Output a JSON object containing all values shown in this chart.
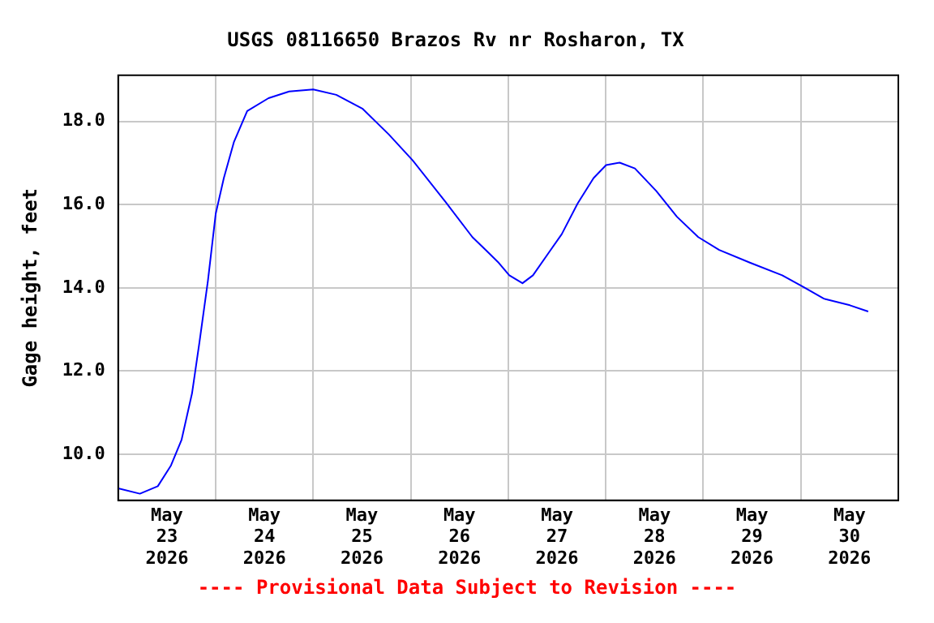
{
  "chart_data": {
    "type": "line",
    "title": "USGS 08116650 Brazos Rv nr Rosharon, TX",
    "ylabel": "Gage height, feet",
    "annotations": [
      "---- Provisional Data Subject to Revision ----"
    ],
    "x": [
      "2026-05-23T00:00",
      "2026-05-23T05:20",
      "2026-05-23T09:45",
      "2026-05-23T13:00",
      "2026-05-23T15:35",
      "2026-05-23T18:10",
      "2026-05-23T20:00",
      "2026-05-23T22:05",
      "2026-05-24T00:00",
      "2026-05-24T02:00",
      "2026-05-24T04:30",
      "2026-05-24T07:45",
      "2026-05-24T13:00",
      "2026-05-24T18:05",
      "2026-05-25T00:00",
      "2026-05-25T05:40",
      "2026-05-25T12:05",
      "2026-05-25T18:35",
      "2026-05-26T00:25",
      "2026-05-26T08:50",
      "2026-05-26T15:10",
      "2026-05-26T19:05",
      "2026-05-26T21:40",
      "2026-05-27T00:15",
      "2026-05-27T03:30",
      "2026-05-27T06:05",
      "2026-05-27T10:00",
      "2026-05-27T13:10",
      "2026-05-27T17:05",
      "2026-05-27T21:00",
      "2026-05-28T00:05",
      "2026-05-28T03:25",
      "2026-05-28T07:10",
      "2026-05-28T12:25",
      "2026-05-28T17:30",
      "2026-05-28T22:45",
      "2026-05-29T03:55",
      "2026-05-29T11:35",
      "2026-05-29T19:25",
      "2026-05-30T00:30",
      "2026-05-30T05:40",
      "2026-05-30T12:05",
      "2026-05-30T16:35"
    ],
    "series": [
      {
        "color": "#0000ff",
        "values": [
          9.18,
          9.05,
          9.23,
          9.73,
          10.34,
          11.46,
          12.69,
          14.17,
          15.78,
          16.64,
          17.51,
          18.25,
          18.56,
          18.72,
          18.77,
          18.64,
          18.31,
          17.69,
          17.07,
          16.03,
          15.22,
          14.85,
          14.6,
          14.3,
          14.11,
          14.3,
          14.85,
          15.29,
          16.03,
          16.64,
          16.95,
          17.01,
          16.87,
          16.33,
          15.71,
          15.22,
          14.91,
          14.6,
          14.3,
          14.03,
          13.74,
          13.58,
          13.43
        ]
      }
    ],
    "xlim": [
      "2026-05-23T00:00",
      "2026-05-31T00:00"
    ],
    "xticks": [
      {
        "value": "2026-05-23T12:00",
        "label": "May\n23\n2026"
      },
      {
        "value": "2026-05-24T00:00",
        "label": null
      },
      {
        "value": "2026-05-24T12:00",
        "label": "May\n24\n2026"
      },
      {
        "value": "2026-05-25T00:00",
        "label": null
      },
      {
        "value": "2026-05-25T12:00",
        "label": "May\n25\n2026"
      },
      {
        "value": "2026-05-26T00:00",
        "label": null
      },
      {
        "value": "2026-05-26T12:00",
        "label": "May\n26\n2026"
      },
      {
        "value": "2026-05-27T00:00",
        "label": null
      },
      {
        "value": "2026-05-27T12:00",
        "label": "May\n27\n2026"
      },
      {
        "value": "2026-05-28T00:00",
        "label": null
      },
      {
        "value": "2026-05-28T12:00",
        "label": "May\n28\n2026"
      },
      {
        "value": "2026-05-29T00:00",
        "label": null
      },
      {
        "value": "2026-05-29T12:00",
        "label": "May\n29\n2026"
      },
      {
        "value": "2026-05-30T00:00",
        "label": null
      },
      {
        "value": "2026-05-30T12:00",
        "label": "May\n30\n2026"
      }
    ],
    "ylim": [
      8.89,
      19.11
    ],
    "yticks": [
      {
        "value": 10,
        "label": "10.0"
      },
      {
        "value": 12,
        "label": "12.0"
      },
      {
        "value": 14,
        "label": "14.0"
      },
      {
        "value": 16,
        "label": "16.0"
      },
      {
        "value": 18,
        "label": "18.0"
      }
    ],
    "grid": true,
    "legend": false,
    "marker": "none",
    "line_style": "solid"
  }
}
